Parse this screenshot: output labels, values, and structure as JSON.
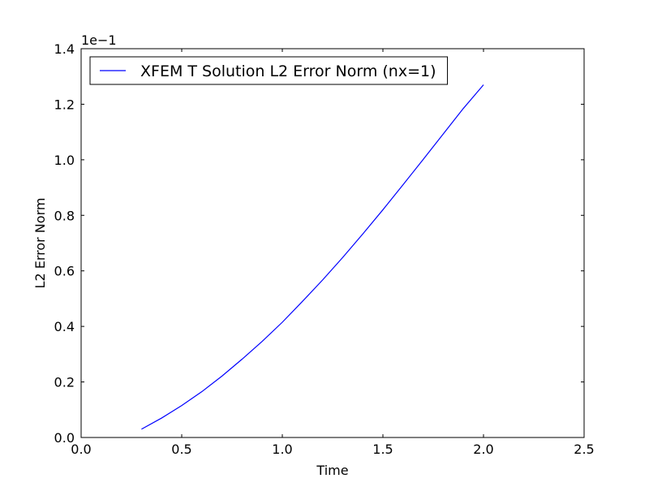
{
  "chart_data": {
    "type": "line",
    "xlabel": "Time",
    "ylabel": "L2 Error Norm",
    "xlim": [
      0.0,
      2.5
    ],
    "ylim": [
      0.0,
      1.4
    ],
    "y_offset_label": "1e−1",
    "x_ticks": [
      "0.0",
      "0.5",
      "1.0",
      "1.5",
      "2.0",
      "2.5"
    ],
    "y_ticks": [
      "0.0",
      "0.2",
      "0.4",
      "0.6",
      "0.8",
      "1.0",
      "1.2",
      "1.4"
    ],
    "grid": false,
    "legend_position": "top-left",
    "series": [
      {
        "name": "XFEM T Solution L2 Error Norm (nx=1)",
        "color": "#0000ff",
        "x": [
          0.3,
          0.4,
          0.5,
          0.6,
          0.7,
          0.8,
          0.9,
          1.0,
          1.1,
          1.2,
          1.3,
          1.4,
          1.5,
          1.6,
          1.7,
          1.8,
          1.9,
          2.0
        ],
        "y": [
          0.03,
          0.07,
          0.115,
          0.165,
          0.221,
          0.282,
          0.346,
          0.415,
          0.49,
          0.567,
          0.648,
          0.733,
          0.82,
          0.91,
          1.001,
          1.093,
          1.185,
          1.27
        ]
      }
    ]
  }
}
